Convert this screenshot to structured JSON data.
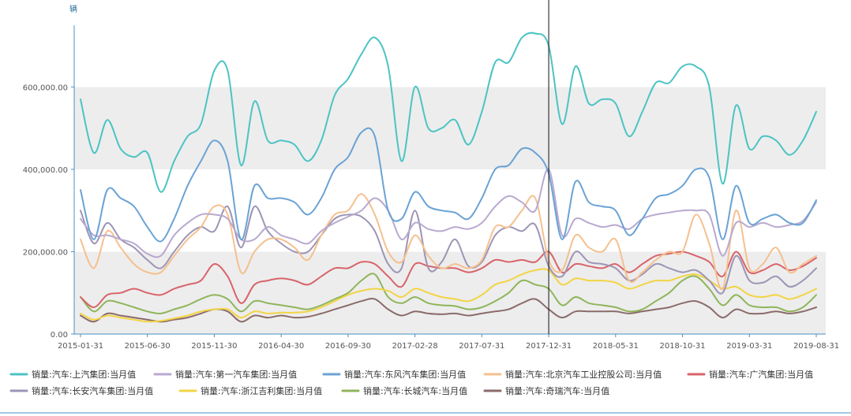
{
  "chart_data": {
    "type": "line",
    "unit": "辆",
    "ylim": [
      0,
      750000
    ],
    "y_ticks": [
      0,
      200000,
      400000,
      600000
    ],
    "y_tick_labels": [
      "0.00",
      "200,000.00",
      "400,000.00",
      "600,000.00"
    ],
    "x_tick_labels": [
      "2015-01-31",
      "2015-06-30",
      "2015-11-30",
      "2016-04-30",
      "2016-09-30",
      "2017-02-28",
      "2017-07-31",
      "2017-12-31",
      "2018-05-31",
      "2018-10-31",
      "2019-03-31",
      "2019-08-31"
    ],
    "x_start": "2015-01",
    "x_end": "2019-08",
    "grid_bands": true,
    "crosshair_at": "2017-12-31",
    "legend_position": "bottom",
    "series": [
      {
        "name": "销量:汽车:上汽集团:当月值",
        "color": "#4cc3c3",
        "values": [
          570000,
          440000,
          520000,
          450000,
          430000,
          440000,
          345000,
          420000,
          480000,
          510000,
          640000,
          640000,
          410000,
          565000,
          470000,
          470000,
          460000,
          420000,
          470000,
          580000,
          620000,
          680000,
          720000,
          650000,
          420000,
          600000,
          500000,
          500000,
          520000,
          460000,
          540000,
          660000,
          660000,
          720000,
          730000,
          700000,
          510000,
          650000,
          560000,
          570000,
          560000,
          480000,
          540000,
          610000,
          610000,
          650000,
          650000,
          600000,
          365000,
          555000,
          450000,
          480000,
          470000,
          435000,
          470000,
          540000
        ]
      },
      {
        "name": "销量:汽车:第一汽车集团:当月值",
        "color": "#b9a9cf",
        "values": [
          280000,
          240000,
          240000,
          230000,
          220000,
          195000,
          190000,
          240000,
          270000,
          290000,
          290000,
          280000,
          230000,
          230000,
          260000,
          240000,
          230000,
          220000,
          250000,
          270000,
          285000,
          300000,
          330000,
          300000,
          230000,
          270000,
          255000,
          250000,
          260000,
          255000,
          270000,
          310000,
          335000,
          320000,
          300000,
          400000,
          240000,
          280000,
          270000,
          260000,
          265000,
          255000,
          280000,
          290000,
          295000,
          300000,
          300000,
          290000,
          190000,
          270000,
          260000,
          270000,
          260000,
          265000,
          275000,
          320000
        ]
      },
      {
        "name": "销量:汽车:东风汽车集团:当月值",
        "color": "#6aa3d5",
        "values": [
          350000,
          230000,
          350000,
          330000,
          310000,
          260000,
          225000,
          280000,
          360000,
          420000,
          470000,
          420000,
          230000,
          360000,
          330000,
          330000,
          320000,
          290000,
          330000,
          400000,
          430000,
          490000,
          480000,
          300000,
          280000,
          345000,
          310000,
          300000,
          295000,
          280000,
          330000,
          400000,
          410000,
          450000,
          440000,
          390000,
          230000,
          370000,
          320000,
          310000,
          300000,
          240000,
          280000,
          330000,
          340000,
          360000,
          400000,
          380000,
          230000,
          360000,
          270000,
          280000,
          290000,
          270000,
          270000,
          325000
        ]
      },
      {
        "name": "销量:汽车:北京汽车工业控股公司:当月值",
        "color": "#f5c08f",
        "values": [
          230000,
          160000,
          250000,
          210000,
          170000,
          150000,
          150000,
          190000,
          230000,
          260000,
          310000,
          290000,
          150000,
          200000,
          230000,
          230000,
          210000,
          180000,
          240000,
          290000,
          300000,
          340000,
          290000,
          200000,
          175000,
          240000,
          190000,
          160000,
          170000,
          160000,
          180000,
          260000,
          260000,
          300000,
          330000,
          180000,
          155000,
          240000,
          210000,
          200000,
          230000,
          130000,
          150000,
          180000,
          200000,
          200000,
          290000,
          220000,
          110000,
          300000,
          160000,
          170000,
          210000,
          150000,
          170000,
          190000
        ]
      },
      {
        "name": "销量:汽车:广汽集团:当月值",
        "color": "#d8646a",
        "values": [
          90000,
          65000,
          95000,
          100000,
          110000,
          100000,
          95000,
          110000,
          120000,
          130000,
          170000,
          140000,
          75000,
          120000,
          130000,
          135000,
          130000,
          120000,
          140000,
          160000,
          160000,
          175000,
          170000,
          140000,
          115000,
          170000,
          165000,
          160000,
          160000,
          150000,
          160000,
          180000,
          175000,
          180000,
          175000,
          200000,
          150000,
          170000,
          165000,
          160000,
          170000,
          150000,
          170000,
          190000,
          195000,
          200000,
          190000,
          175000,
          140000,
          200000,
          150000,
          155000,
          170000,
          155000,
          165000,
          185000
        ]
      },
      {
        "name": "销量:汽车:长安汽车集团:当月值",
        "color": "#9d95b5",
        "values": [
          300000,
          220000,
          270000,
          230000,
          210000,
          180000,
          160000,
          200000,
          240000,
          260000,
          250000,
          310000,
          210000,
          310000,
          250000,
          220000,
          200000,
          200000,
          240000,
          280000,
          290000,
          285000,
          250000,
          170000,
          160000,
          300000,
          160000,
          175000,
          230000,
          165000,
          175000,
          240000,
          260000,
          250000,
          265000,
          165000,
          140000,
          200000,
          175000,
          170000,
          160000,
          130000,
          145000,
          170000,
          160000,
          150000,
          155000,
          130000,
          100000,
          190000,
          130000,
          125000,
          140000,
          115000,
          130000,
          160000
        ]
      },
      {
        "name": "销量:汽车:浙江吉利集团:当月值",
        "color": "#f2d445",
        "values": [
          50000,
          35000,
          45000,
          40000,
          35000,
          30000,
          32000,
          38000,
          45000,
          55000,
          60000,
          60000,
          40000,
          55000,
          50000,
          52000,
          52000,
          55000,
          65000,
          80000,
          95000,
          105000,
          110000,
          105000,
          90000,
          110000,
          100000,
          90000,
          85000,
          80000,
          95000,
          120000,
          130000,
          145000,
          155000,
          155000,
          120000,
          135000,
          130000,
          130000,
          125000,
          110000,
          120000,
          130000,
          130000,
          140000,
          145000,
          130000,
          110000,
          115000,
          95000,
          90000,
          95000,
          85000,
          95000,
          110000
        ]
      },
      {
        "name": "销量:汽车:长城汽车:当月值",
        "color": "#8fb55a",
        "values": [
          90000,
          55000,
          80000,
          75000,
          65000,
          55000,
          50000,
          60000,
          70000,
          85000,
          95000,
          85000,
          55000,
          80000,
          75000,
          70000,
          65000,
          60000,
          70000,
          85000,
          100000,
          130000,
          145000,
          90000,
          75000,
          90000,
          75000,
          70000,
          68000,
          60000,
          65000,
          80000,
          100000,
          130000,
          120000,
          110000,
          70000,
          90000,
          75000,
          70000,
          65000,
          55000,
          60000,
          80000,
          100000,
          130000,
          140000,
          110000,
          70000,
          95000,
          70000,
          65000,
          65000,
          55000,
          65000,
          95000
        ]
      },
      {
        "name": "销量:汽车:奇瑞汽车:当月值",
        "color": "#8b6b6b",
        "values": [
          45000,
          30000,
          50000,
          45000,
          40000,
          35000,
          30000,
          35000,
          40000,
          50000,
          60000,
          55000,
          30000,
          45000,
          40000,
          45000,
          40000,
          42000,
          50000,
          60000,
          70000,
          80000,
          85000,
          60000,
          45000,
          55000,
          50000,
          48000,
          50000,
          45000,
          50000,
          55000,
          60000,
          75000,
          85000,
          60000,
          40000,
          55000,
          55000,
          55000,
          55000,
          50000,
          55000,
          60000,
          65000,
          75000,
          80000,
          65000,
          40000,
          60000,
          50000,
          50000,
          55000,
          50000,
          55000,
          65000
        ]
      }
    ]
  }
}
